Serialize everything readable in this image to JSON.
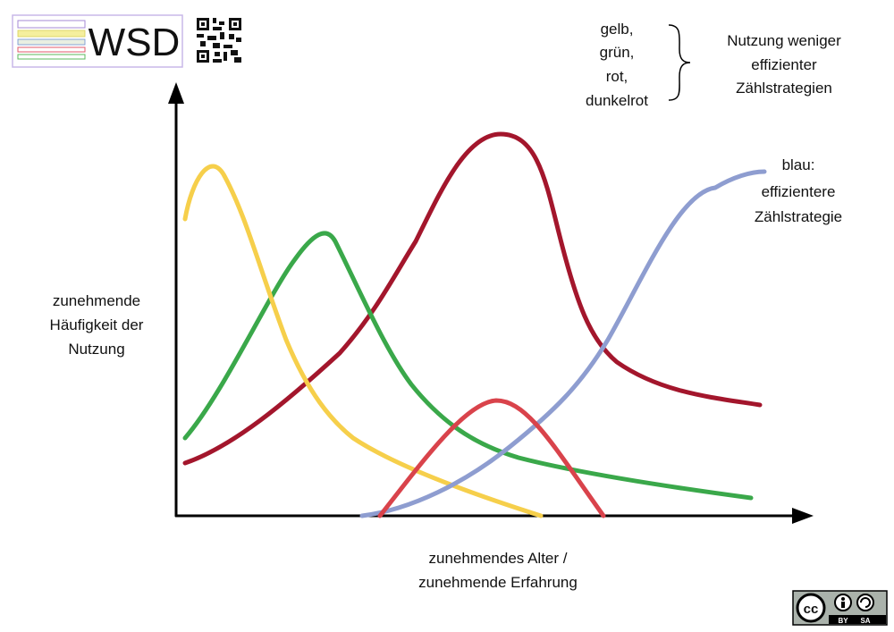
{
  "logo": {
    "text": "WSD"
  },
  "legend": {
    "weak": [
      "gelb,",
      "grün,",
      "rot,",
      "dunkelrot"
    ],
    "weak_note": [
      "Nutzung weniger",
      "effizienter",
      "Zählstrategien"
    ],
    "strong_note": [
      "blau:",
      "effizientere",
      "Zählstrategie"
    ]
  },
  "y_label": [
    "zunehmende",
    "Häufigkeit der",
    "Nutzung"
  ],
  "x_label": [
    "zunehmendes Alter /",
    "zunehmende Erfahrung"
  ],
  "license": {
    "icon": "cc",
    "by": "BY",
    "sa": "SA"
  }
}
